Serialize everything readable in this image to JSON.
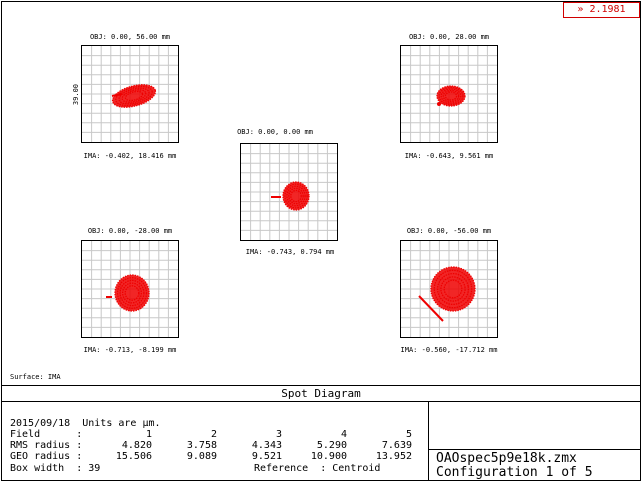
{
  "zoom_label": "» 2.1981",
  "spots": [
    {
      "obj": "OBJ: 0.00, 56.00 mm",
      "ima": "IMA: -0.402, 18.416 mm"
    },
    {
      "obj": "OBJ: 0.00, 28.00 mm",
      "ima": "IMA: -0.643, 9.561 mm"
    },
    {
      "obj": "OBJ: 0.00, 0.00 mm",
      "ima": "IMA: -0.743, 0.794 mm"
    },
    {
      "obj": "OBJ: 0.00, -28.00 mm",
      "ima": "IMA: -0.713, -8.199 mm"
    },
    {
      "obj": "OBJ: 0.00, -56.00 mm",
      "ima": "IMA: -0.560, -17.712 mm"
    }
  ],
  "scale_label": "39.00",
  "surface": "Surface: IMA",
  "title": "Spot Diagram",
  "info": {
    "date_units": "2015/09/18  Units are µm.",
    "field_label": "Field      :",
    "rms_label": "RMS radius :",
    "geo_label": "GEO radius :",
    "box_label": "Box width  : 39",
    "reference": "Reference  : Centroid",
    "fields": [
      "1",
      "2",
      "3",
      "4",
      "5"
    ],
    "rms": [
      "4.820",
      "3.758",
      "4.343",
      "5.290",
      "7.639"
    ],
    "geo": [
      "15.506",
      "9.089",
      "9.521",
      "10.900",
      "13.952"
    ]
  },
  "filename": "OAOspec5p9e18k.zmx",
  "configuration": "Configuration 1 of 5",
  "colors": {
    "spot": "#ee0000",
    "zoom": "#d00000"
  }
}
